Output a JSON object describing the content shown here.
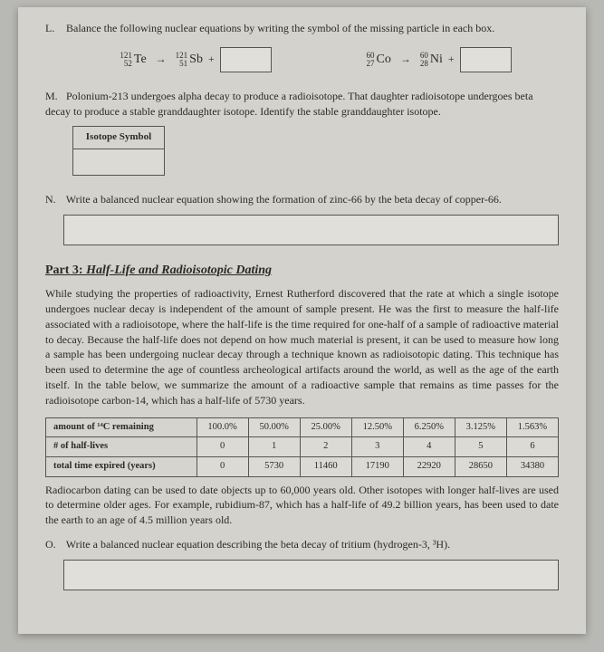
{
  "L": {
    "prompt": "Balance the following nuclear equations by writing the symbol of the missing particle in each box.",
    "eq1": {
      "a_mass": "121",
      "a_atomic": "52",
      "a_el": "Te",
      "b_mass": "121",
      "b_atomic": "51",
      "b_el": "Sb",
      "plus": "+"
    },
    "eq2": {
      "a_mass": "60",
      "a_atomic": "27",
      "a_el": "Co",
      "b_mass": "60",
      "b_atomic": "28",
      "b_el": "Ni",
      "plus": "+"
    }
  },
  "M": {
    "prompt": "Polonium-213 undergoes alpha decay to produce a radioisotope. That daughter radioisotope undergoes beta decay to produce a stable granddaughter isotope. Identify the stable granddaughter isotope.",
    "header": "Isotope Symbol"
  },
  "N": {
    "prompt": "Write a balanced nuclear equation showing the formation of zinc-66 by the beta decay of copper-66."
  },
  "part3": {
    "title_prefix": "Part 3:  ",
    "title": "Half-Life and Radioisotopic Dating",
    "body": "While studying the properties of radioactivity, Ernest Rutherford discovered that the rate at which a single isotope undergoes nuclear decay is independent of the amount of sample present. He was the first to measure the half-life associated with a radioisotope, where the half-life is the time required for one-half of a sample of radioactive material to decay. Because the half-life does not depend on how much material is present, it can be used to measure how long a sample has been undergoing nuclear decay through a technique known as radioisotopic dating. This technique has been used to determine the age of countless archeological artifacts around the world, as well as the age of the earth itself. In the table below, we summarize the amount of a radioactive sample that remains as time passes for the radioisotope carbon-14, which has a half-life of 5730 years.",
    "table": {
      "row1_label": "amount of ¹⁴C remaining",
      "row2_label": "# of half-lives",
      "row3_label": "total time expired (years)",
      "cols": {
        "c0": {
          "remaining": "100.0%",
          "halflives": "0",
          "time": "0"
        },
        "c1": {
          "remaining": "50.00%",
          "halflives": "1",
          "time": "5730"
        },
        "c2": {
          "remaining": "25.00%",
          "halflives": "2",
          "time": "11460"
        },
        "c3": {
          "remaining": "12.50%",
          "halflives": "3",
          "time": "17190"
        },
        "c4": {
          "remaining": "6.250%",
          "halflives": "4",
          "time": "22920"
        },
        "c5": {
          "remaining": "3.125%",
          "halflives": "5",
          "time": "28650"
        },
        "c6": {
          "remaining": "1.563%",
          "halflives": "6",
          "time": "34380"
        }
      }
    },
    "body2": "Radiocarbon dating can be used to date objects up to 60,000 years old. Other isotopes with longer half-lives are used to determine older ages. For example, rubidium-87, which has a half-life of 49.2 billion years, has been used to date the earth to an age of 4.5 million years old."
  },
  "O": {
    "prompt": "Write a balanced nuclear equation describing the beta decay of tritium (hydrogen-3, ³H)."
  }
}
